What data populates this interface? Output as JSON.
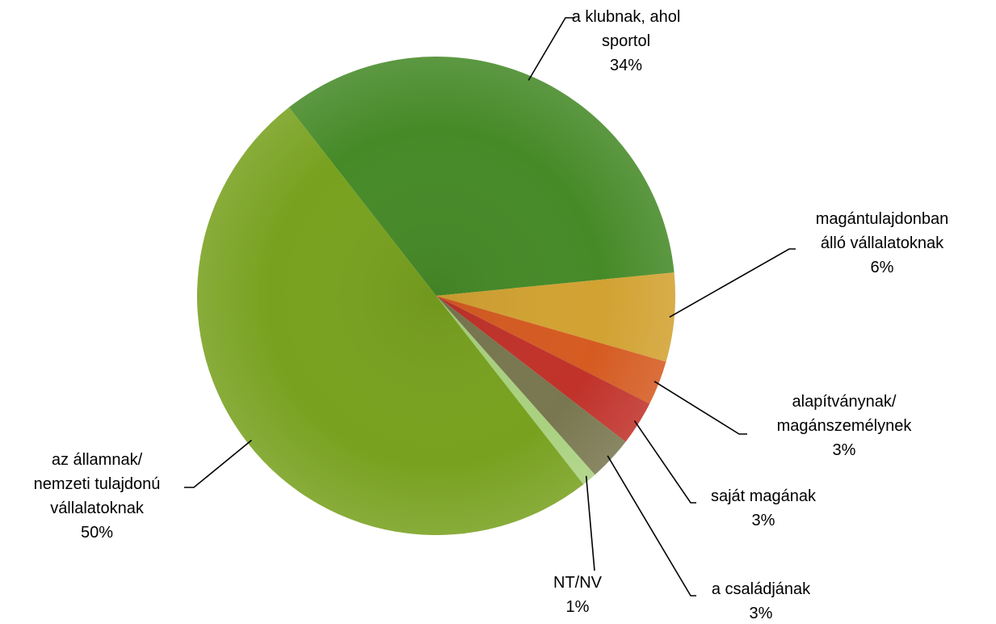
{
  "chart_data": {
    "type": "pie",
    "categories": [
      [
        "a klubnak, ahol",
        "sportol"
      ],
      [
        "magántulajdonban",
        "álló vállalatoknak"
      ],
      [
        "alapítványnak/",
        "magánszemélynek"
      ],
      [
        "saját magának"
      ],
      [
        "a családjának"
      ],
      [
        "NT/NV"
      ],
      [
        "az államnak/",
        "nemzeti tulajdonú",
        "vállalatoknak"
      ]
    ],
    "values": [
      34,
      6,
      3,
      3,
      3,
      1,
      50
    ],
    "value_labels": [
      "34%",
      "6%",
      "3%",
      "3%",
      "3%",
      "1%",
      "50%"
    ],
    "colors": [
      "#468a28",
      "#d2a232",
      "#d55b21",
      "#c0322a",
      "#79774f",
      "#a9d17f",
      "#78a11f"
    ]
  }
}
